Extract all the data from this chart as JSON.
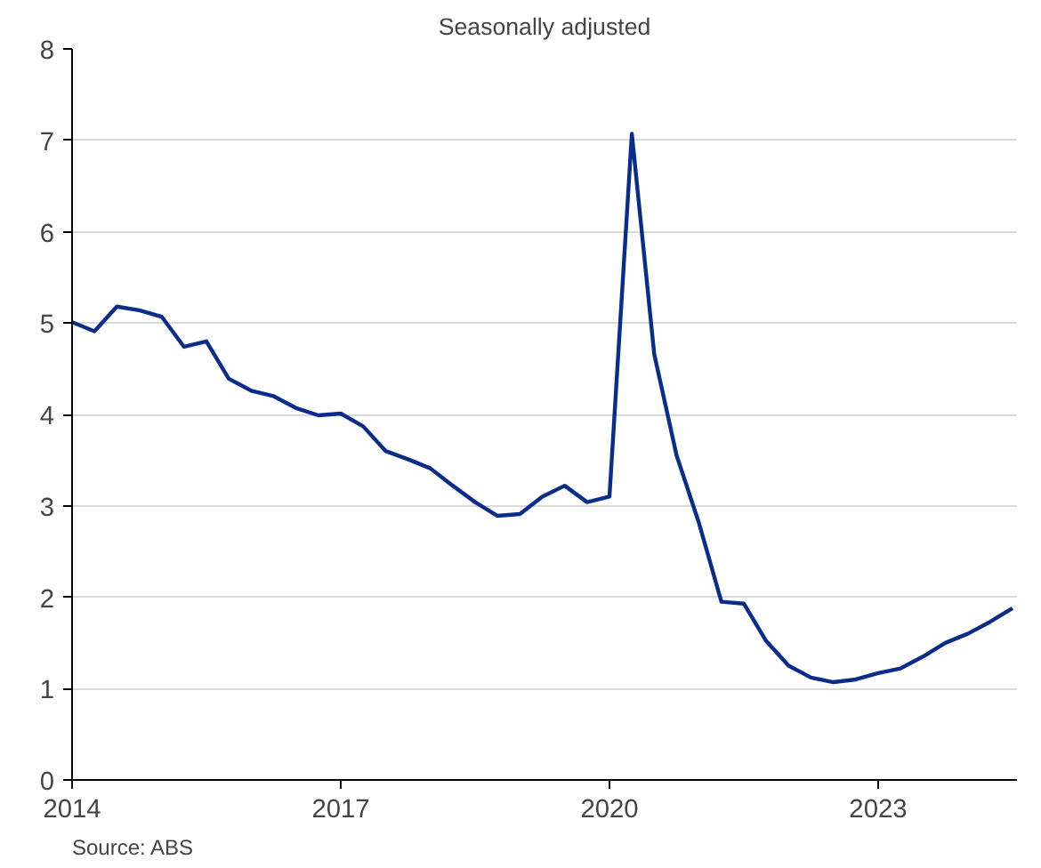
{
  "chart_data": {
    "type": "line",
    "subtitle": "Seasonally adjusted",
    "x": [
      2014,
      2014.25,
      2014.5,
      2014.75,
      2015,
      2015.25,
      2015.5,
      2015.75,
      2016,
      2016.25,
      2016.5,
      2016.75,
      2017,
      2017.25,
      2017.5,
      2017.75,
      2018,
      2018.25,
      2018.5,
      2018.75,
      2019,
      2019.25,
      2019.5,
      2019.75,
      2020,
      2020.25,
      2020.5,
      2020.75,
      2021,
      2021.25,
      2021.5,
      2021.75,
      2022,
      2022.25,
      2022.5,
      2022.75,
      2023,
      2023.25,
      2023.5,
      2023.75,
      2024,
      2024.25,
      2024.5
    ],
    "series": [
      {
        "color": "#0a2d8c",
        "values": [
          5.01,
          4.91,
          5.18,
          5.14,
          5.07,
          4.74,
          4.8,
          4.39,
          4.26,
          4.2,
          4.07,
          3.99,
          4.01,
          3.87,
          3.6,
          3.51,
          3.41,
          3.22,
          3.04,
          2.89,
          2.91,
          3.1,
          3.22,
          3.04,
          3.1,
          7.07,
          4.66,
          3.55,
          2.81,
          1.95,
          1.93,
          1.52,
          1.25,
          1.12,
          1.07,
          1.1,
          1.17,
          1.22,
          1.35,
          1.5,
          1.6,
          1.73,
          1.88
        ]
      }
    ],
    "xlim": [
      2014,
      2024.55
    ],
    "xticks": [
      2014,
      2017,
      2020,
      2023
    ],
    "ylim": [
      0,
      8
    ],
    "yticks": [
      0,
      1,
      2,
      3,
      4,
      5,
      6,
      7,
      8
    ],
    "grid": "y",
    "marker": "none",
    "line_style": "solid",
    "annotations": [
      "Source: ABS"
    ]
  }
}
